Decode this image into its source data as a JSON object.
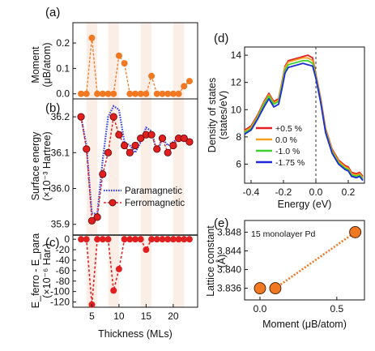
{
  "chart_data": [
    {
      "panel": "(a)",
      "type": "scatter",
      "ylabel_html": "Moment (μʙ/atom)",
      "ylabel": [
        "Moment",
        "(μB/atom)"
      ],
      "yticks": [
        "0.2",
        "0.1",
        "0.0"
      ],
      "ylim": [
        -0.02,
        0.28
      ],
      "series": [
        {
          "x": [
            3,
            4,
            5,
            6,
            7,
            8,
            9,
            10,
            11,
            12,
            13,
            14,
            15,
            16,
            17,
            18,
            19,
            20,
            21,
            22,
            23
          ],
          "y": [
            0.0,
            0.0,
            0.22,
            0.0,
            0.0,
            0.0,
            0.0,
            0.15,
            0.12,
            0.0,
            0.0,
            0.0,
            0.0,
            0.07,
            0.0,
            0.0,
            0.0,
            0.0,
            0.0,
            0.03,
            0.05
          ],
          "color": "#f07820"
        }
      ]
    },
    {
      "panel": "(b)",
      "type": "line",
      "ylabel": [
        "Surface energy",
        "(×10⁻³ Hartree)"
      ],
      "yticks": [
        "36.2",
        "36.1",
        "36.0",
        "35.9"
      ],
      "ylim": [
        35.87,
        36.25
      ],
      "legend": [
        "Paramagnetic",
        "Ferromagnetic"
      ],
      "series": [
        {
          "name": "Paramagnetic",
          "x": [
            3,
            4,
            5,
            6,
            7,
            8,
            9,
            10,
            11,
            12,
            13,
            14,
            15,
            16,
            17,
            18,
            19,
            20,
            21,
            22,
            23
          ],
          "y": [
            36.2,
            36.12,
            35.93,
            35.93,
            36.08,
            36.2,
            36.23,
            36.22,
            36.13,
            36.12,
            36.1,
            36.13,
            36.17,
            36.16,
            36.1,
            36.14,
            36.12,
            36.13,
            36.14,
            36.15,
            36.12
          ],
          "color": "#3a45e0"
        },
        {
          "name": "Ferromagnetic",
          "x": [
            3,
            4,
            5,
            6,
            7,
            8,
            9,
            10,
            11,
            12,
            13,
            14,
            15,
            16,
            17,
            18,
            19,
            20,
            21,
            22,
            23
          ],
          "y": [
            36.2,
            36.11,
            35.91,
            35.92,
            36.04,
            36.1,
            36.2,
            36.15,
            36.12,
            36.1,
            36.12,
            36.14,
            36.15,
            36.15,
            36.11,
            36.14,
            36.1,
            36.12,
            36.14,
            36.14,
            36.13
          ],
          "color": "#e02020"
        }
      ]
    },
    {
      "panel": "(c)",
      "type": "scatter",
      "ylabel": [
        "E_ferro - E_para",
        "(×10⁻⁶ Har.)"
      ],
      "yticks": [
        "0",
        "-20",
        "-40",
        "-60",
        "-80",
        "-100",
        "-120"
      ],
      "ylim": [
        -130,
        8
      ],
      "xlabel": "Thickness (MLs)",
      "xticks": [
        "5",
        "10",
        "15",
        "20"
      ],
      "xlim": [
        1.5,
        24.5
      ],
      "series": [
        {
          "x": [
            3,
            4,
            5,
            6,
            7,
            8,
            9,
            10,
            11,
            12,
            13,
            14,
            15,
            16,
            17,
            18,
            19,
            20,
            21,
            22,
            23
          ],
          "y": [
            0,
            0,
            -125,
            0,
            0,
            0,
            -98,
            -57,
            0,
            0,
            0,
            0,
            -20,
            0,
            0,
            0,
            0,
            0,
            0,
            0,
            0
          ],
          "color": "#e02020"
        }
      ]
    },
    {
      "panel": "(d)",
      "type": "line",
      "xlabel": "Energy (eV)",
      "ylabel": [
        "Density of states",
        "(states/eV)"
      ],
      "xticks": [
        "-0.4",
        "-0.2",
        "0.0",
        "0.2"
      ],
      "yticks": [
        "14",
        "12",
        "10",
        "8",
        "6"
      ],
      "xlim": [
        -0.44,
        0.3
      ],
      "ylim": [
        4.6,
        14.6
      ],
      "fermi_level": 0.0,
      "legend": [
        "+0.5 %",
        "0.0 %",
        "-1.0 %",
        "-1.75 %"
      ],
      "series": [
        {
          "name": "+0.5 %",
          "color": "#e22020",
          "x": [
            -0.44,
            -0.4,
            -0.36,
            -0.32,
            -0.29,
            -0.26,
            -0.23,
            -0.21,
            -0.19,
            -0.17,
            -0.14,
            -0.11,
            -0.08,
            -0.05,
            -0.02,
            0.0,
            0.03,
            0.06,
            0.1,
            0.14,
            0.18,
            0.2,
            0.22,
            0.25,
            0.27,
            0.29
          ],
          "y": [
            8.5,
            8.8,
            9.6,
            10.6,
            11.2,
            10.6,
            10.8,
            12.0,
            13.2,
            13.6,
            13.7,
            13.8,
            13.9,
            14.0,
            13.8,
            12.6,
            10.8,
            8.6,
            7.1,
            6.3,
            5.9,
            5.8,
            5.4,
            5.3,
            5.4,
            5.1
          ]
        },
        {
          "name": "0.0 %",
          "color": "#f5a020",
          "x": [
            -0.44,
            -0.4,
            -0.36,
            -0.32,
            -0.29,
            -0.26,
            -0.23,
            -0.21,
            -0.19,
            -0.17,
            -0.14,
            -0.11,
            -0.08,
            -0.05,
            -0.02,
            0.0,
            0.03,
            0.06,
            0.1,
            0.14,
            0.18,
            0.2,
            0.22,
            0.25,
            0.27,
            0.29
          ],
          "y": [
            8.4,
            8.7,
            9.5,
            10.5,
            11.1,
            10.5,
            10.7,
            11.9,
            13.1,
            13.5,
            13.6,
            13.7,
            13.8,
            13.8,
            13.6,
            12.5,
            10.7,
            8.5,
            7.0,
            6.2,
            5.8,
            5.7,
            5.3,
            5.2,
            5.3,
            5.0
          ]
        },
        {
          "name": "-1.0 %",
          "color": "#40d030",
          "x": [
            -0.44,
            -0.4,
            -0.36,
            -0.32,
            -0.29,
            -0.26,
            -0.23,
            -0.21,
            -0.19,
            -0.17,
            -0.14,
            -0.11,
            -0.08,
            -0.05,
            -0.02,
            0.0,
            0.03,
            0.06,
            0.1,
            0.14,
            0.18,
            0.2,
            0.22,
            0.25,
            0.27,
            0.29
          ],
          "y": [
            8.3,
            8.6,
            9.4,
            10.4,
            11.0,
            10.4,
            10.6,
            11.7,
            12.9,
            13.3,
            13.4,
            13.5,
            13.6,
            13.6,
            13.4,
            12.4,
            10.6,
            8.4,
            6.9,
            6.1,
            5.7,
            5.6,
            5.2,
            5.1,
            5.2,
            4.9
          ]
        },
        {
          "name": "-1.75 %",
          "color": "#1c2ad8",
          "x": [
            -0.44,
            -0.4,
            -0.36,
            -0.32,
            -0.29,
            -0.26,
            -0.23,
            -0.21,
            -0.19,
            -0.17,
            -0.14,
            -0.11,
            -0.08,
            -0.05,
            -0.02,
            0.0,
            0.03,
            0.06,
            0.1,
            0.14,
            0.18,
            0.2,
            0.22,
            0.25,
            0.27,
            0.29
          ],
          "y": [
            8.2,
            8.5,
            9.3,
            10.2,
            10.8,
            10.2,
            10.4,
            11.5,
            12.7,
            13.1,
            13.2,
            13.3,
            13.4,
            13.3,
            13.2,
            12.3,
            10.5,
            8.3,
            6.8,
            6.0,
            5.6,
            5.5,
            5.1,
            5.0,
            5.1,
            4.8
          ]
        }
      ]
    },
    {
      "panel": "(e)",
      "type": "scatter",
      "xlabel": "Moment (μB/atom)",
      "ylabel": [
        "Lattice constant",
        "(Å)"
      ],
      "xticks": [
        "0.0",
        "0.5"
      ],
      "yticks": [
        "3.848",
        "3.844",
        "3.840",
        "3.836"
      ],
      "xlim": [
        -0.1,
        0.68
      ],
      "ylim": [
        3.8335,
        3.8505
      ],
      "annotation": "15 monolayer Pd",
      "series": [
        {
          "x": [
            0.0,
            0.1,
            0.62
          ],
          "y": [
            3.836,
            3.836,
            3.848
          ],
          "color": "#f07820"
        }
      ]
    }
  ]
}
